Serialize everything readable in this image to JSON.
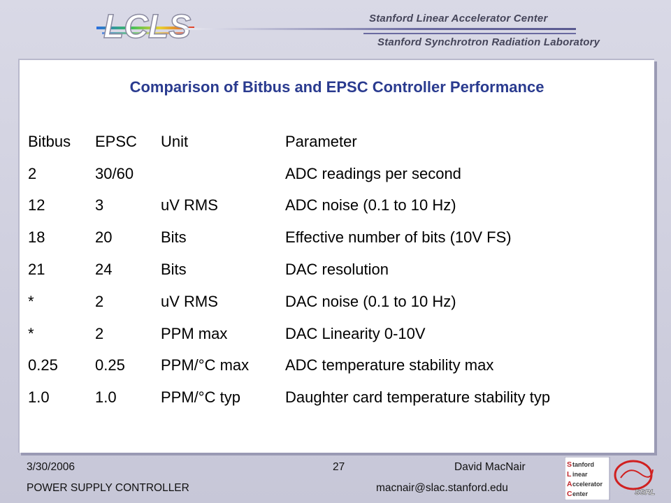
{
  "header": {
    "logo_text": "LCLS",
    "lab_line1": "Stanford Linear Accelerator Center",
    "lab_line2": "Stanford Synchrotron Radiation Laboratory"
  },
  "slide": {
    "title": "Comparison of Bitbus and EPSC Controller Performance",
    "columns": [
      "Bitbus",
      "EPSC",
      "Unit",
      "Parameter"
    ],
    "rows": [
      [
        "2",
        "30/60",
        "",
        "ADC readings per second"
      ],
      [
        "12",
        "3",
        "uV RMS",
        "ADC noise (0.1 to 10 Hz)"
      ],
      [
        "18",
        "20",
        "Bits",
        "Effective number of bits (10V FS)"
      ],
      [
        "21",
        "24",
        "Bits",
        "DAC resolution"
      ],
      [
        "*",
        "2",
        "uV RMS",
        "DAC noise (0.1 to 10 Hz)"
      ],
      [
        "*",
        "2",
        "PPM max",
        "DAC Linearity 0-10V"
      ],
      [
        "0.25",
        "0.25",
        "PPM/°C max",
        "ADC temperature stability max"
      ],
      [
        "1.0",
        "1.0",
        "PPM/°C typ",
        "Daughter card temperature stability typ"
      ]
    ]
  },
  "footer": {
    "date": "3/30/2006",
    "page": "27",
    "author": "David MacNair",
    "topic": "POWER SUPPLY CONTROLLER",
    "email": "macnair@slac.stanford.edu",
    "ssrl_letters": [
      "S",
      "L",
      "A",
      "C"
    ],
    "ssrl_words": [
      "tanford",
      "inear",
      "ccelerator",
      "enter"
    ],
    "ssrl_badge": "SSRL"
  },
  "colors": {
    "title": "#2a3b8f",
    "logo_gradient": [
      "#2a6de0",
      "#3ac05a",
      "#e8d030",
      "#e04030"
    ]
  }
}
